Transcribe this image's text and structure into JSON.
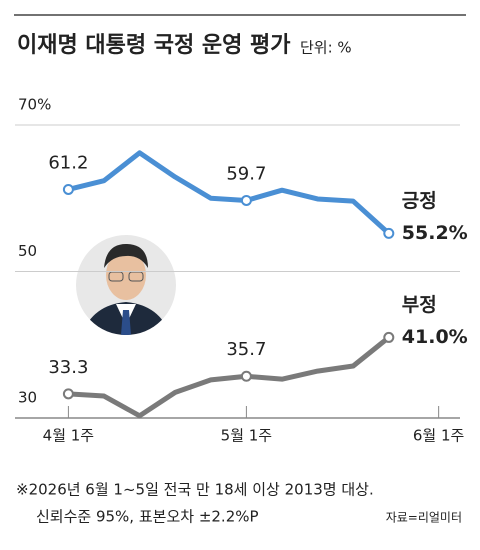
{
  "chart_data": {
    "type": "line",
    "title": "이재명 대통령 국정 운영 평가",
    "subtitle": "단위: %",
    "x": [
      0,
      1,
      2,
      3,
      4,
      5,
      6,
      7,
      8,
      9
    ],
    "xlim": [
      -1.5,
      11
    ],
    "xticks": [
      {
        "value": 0,
        "label": "4월 1주"
      },
      {
        "value": 5,
        "label": "5월 1주"
      },
      {
        "value": 10.4,
        "label": "6월 1주"
      }
    ],
    "ylim": [
      30,
      70
    ],
    "yticks": [
      {
        "value": 30,
        "label": "30"
      },
      {
        "value": 50,
        "label": "50"
      },
      {
        "value": 70,
        "label": "70%"
      }
    ],
    "grid": true,
    "series": [
      {
        "name": "긍정",
        "color": "#4a8fd4",
        "values": [
          61.2,
          62.4,
          66.2,
          62.9,
          60.0,
          59.7,
          61.1,
          59.9,
          59.6,
          55.2
        ],
        "value_labels": [
          "61.2",
          null,
          null,
          null,
          null,
          "59.7",
          null,
          null,
          null,
          "55.2%"
        ]
      },
      {
        "name": "부정",
        "color": "#7a7a7a",
        "values": [
          33.3,
          33.0,
          30.3,
          33.5,
          35.2,
          35.7,
          35.3,
          36.4,
          37.1,
          41.0
        ],
        "value_labels": [
          "33.3",
          null,
          null,
          null,
          null,
          "35.7",
          null,
          null,
          null,
          "41.0%"
        ]
      }
    ],
    "footnote": [
      "※2026년 6월 1~5일 전국 만 18세 이상 2013명 대상.",
      "신뢰수준 95%, 표본오차 ±2.2%P"
    ],
    "source": "자료=리얼미터"
  }
}
